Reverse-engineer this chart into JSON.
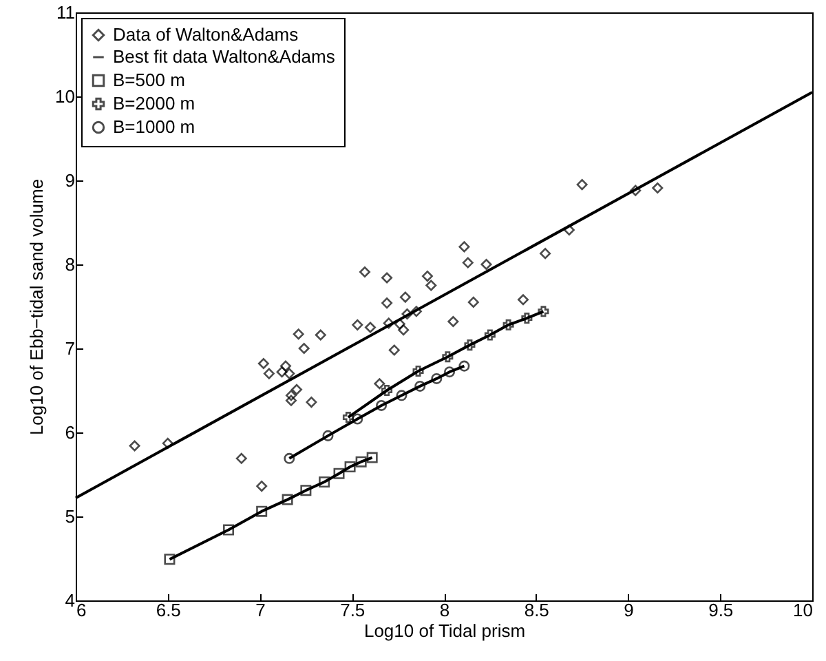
{
  "chart_data": {
    "type": "scatter",
    "xlabel": "Log10 of Tidal prism",
    "ylabel": "Log10 of Ebb−tidal sand volume",
    "xlim": [
      6,
      10
    ],
    "ylim": [
      4,
      11
    ],
    "xticks": [
      6,
      6.5,
      7,
      7.5,
      8,
      8.5,
      9,
      9.5,
      10
    ],
    "yticks": [
      4,
      5,
      6,
      7,
      8,
      9,
      10,
      11
    ],
    "grid": false,
    "legend": "top left",
    "series": [
      {
        "name": "Data of Walton&Adams",
        "marker": "diamond",
        "color": "#000000",
        "x": [
          6.32,
          6.5,
          6.9,
          7.01,
          7.02,
          7.05,
          7.12,
          7.14,
          7.16,
          7.17,
          7.17,
          7.2,
          7.21,
          7.24,
          7.28,
          7.33,
          7.53,
          7.57,
          7.6,
          7.65,
          7.69,
          7.69,
          7.7,
          7.73,
          7.76,
          7.78,
          7.79,
          7.8,
          7.85,
          7.91,
          7.93,
          8.05,
          8.11,
          8.13,
          8.16,
          8.23,
          8.43,
          8.55,
          8.68,
          8.75,
          9.04,
          9.16
        ],
        "values": [
          5.84,
          5.87,
          5.69,
          5.36,
          6.82,
          6.7,
          6.72,
          6.79,
          6.7,
          6.44,
          6.38,
          6.51,
          7.17,
          7.0,
          6.36,
          7.16,
          7.28,
          7.91,
          7.25,
          6.58,
          7.84,
          7.54,
          7.3,
          6.98,
          7.29,
          7.22,
          7.61,
          7.41,
          7.44,
          7.86,
          7.75,
          7.32,
          8.21,
          8.02,
          7.55,
          8.0,
          7.58,
          8.13,
          8.41,
          8.95,
          8.88,
          8.91
        ]
      },
      {
        "name": "Best fit data Walton&Adams",
        "type": "line",
        "marker": "none",
        "line_style": "solid",
        "color": "#000000",
        "x": [
          6,
          10
        ],
        "values": [
          5.22,
          10.05
        ]
      },
      {
        "name": "B=500 m",
        "type": "line",
        "marker": "square",
        "line_style": "solid",
        "color": "#000000",
        "x": [
          6.51,
          6.83,
          7.01,
          7.15,
          7.25,
          7.35,
          7.43,
          7.49,
          7.55,
          7.61
        ],
        "values": [
          4.49,
          4.84,
          5.06,
          5.2,
          5.31,
          5.41,
          5.51,
          5.59,
          5.65,
          5.7
        ]
      },
      {
        "name": "B=2000 m",
        "type": "line",
        "marker": "cross",
        "line_style": "solid",
        "color": "#000000",
        "x": [
          7.48,
          7.69,
          7.86,
          8.02,
          8.14,
          8.25,
          8.35,
          8.45,
          8.54
        ],
        "values": [
          6.18,
          6.5,
          6.73,
          6.9,
          7.04,
          7.16,
          7.28,
          7.36,
          7.44
        ]
      },
      {
        "name": "B=1000 m",
        "type": "line",
        "marker": "circle",
        "line_style": "solid",
        "color": "#000000",
        "x": [
          7.16,
          7.37,
          7.53,
          7.66,
          7.77,
          7.87,
          7.96,
          8.03,
          8.11
        ],
        "values": [
          5.69,
          5.96,
          6.16,
          6.32,
          6.44,
          6.55,
          6.64,
          6.72,
          6.79
        ]
      }
    ]
  }
}
